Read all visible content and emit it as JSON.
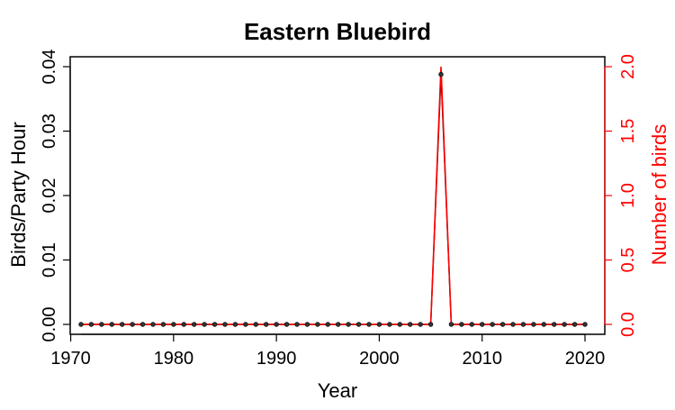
{
  "chart_data": {
    "type": "line",
    "title": "Eastern Bluebird",
    "xlabel": "Year",
    "ylabel": "Birds/Party Hour",
    "y2label": "Number of birds",
    "xlim": [
      1970,
      2020
    ],
    "ylim": [
      0,
      0.04
    ],
    "y2lim": [
      0,
      2.0
    ],
    "xticks": [
      1970,
      1980,
      1990,
      2000,
      2010,
      2020
    ],
    "yticks": [
      "0.00",
      "0.01",
      "0.02",
      "0.03",
      "0.04"
    ],
    "y2ticks": [
      "0.0",
      "0.5",
      "1.0",
      "1.5",
      "2.0"
    ],
    "grid": false,
    "colors": {
      "primary": "#000000",
      "secondary": "#ff0000",
      "marker": "#333333"
    },
    "series": [
      {
        "axis": "left",
        "x": [
          1971,
          1972,
          1973,
          1974,
          1975,
          1976,
          1977,
          1978,
          1979,
          1980,
          1981,
          1982,
          1983,
          1984,
          1985,
          1986,
          1987,
          1988,
          1989,
          1990,
          1991,
          1992,
          1993,
          1994,
          1995,
          1996,
          1997,
          1998,
          1999,
          2000,
          2001,
          2002,
          2003,
          2004,
          2005,
          2006,
          2007,
          2008,
          2009,
          2010,
          2011,
          2012,
          2013,
          2014,
          2015,
          2016,
          2017,
          2018,
          2019,
          2020
        ],
        "values": [
          0,
          0,
          0,
          0,
          0,
          0,
          0,
          0,
          0,
          0,
          0,
          0,
          0,
          0,
          0,
          0,
          0,
          0,
          0,
          0,
          0,
          0,
          0,
          0,
          0,
          0,
          0,
          0,
          0,
          0,
          0,
          0,
          0,
          0,
          0,
          0.0388,
          0,
          0,
          0,
          0,
          0,
          0,
          0,
          0,
          0,
          0,
          0,
          0,
          0,
          0
        ]
      },
      {
        "axis": "right",
        "x": [
          1971,
          1972,
          1973,
          1974,
          1975,
          1976,
          1977,
          1978,
          1979,
          1980,
          1981,
          1982,
          1983,
          1984,
          1985,
          1986,
          1987,
          1988,
          1989,
          1990,
          1991,
          1992,
          1993,
          1994,
          1995,
          1996,
          1997,
          1998,
          1999,
          2000,
          2001,
          2002,
          2003,
          2004,
          2005,
          2006,
          2007,
          2008,
          2009,
          2010,
          2011,
          2012,
          2013,
          2014,
          2015,
          2016,
          2017,
          2018,
          2019,
          2020
        ],
        "values": [
          0,
          0,
          0,
          0,
          0,
          0,
          0,
          0,
          0,
          0,
          0,
          0,
          0,
          0,
          0,
          0,
          0,
          0,
          0,
          0,
          0,
          0,
          0,
          0,
          0,
          0,
          0,
          0,
          0,
          0,
          0,
          0,
          0,
          0,
          0,
          2,
          0,
          0,
          0,
          0,
          0,
          0,
          0,
          0,
          0,
          0,
          0,
          0,
          0,
          0
        ]
      }
    ]
  }
}
